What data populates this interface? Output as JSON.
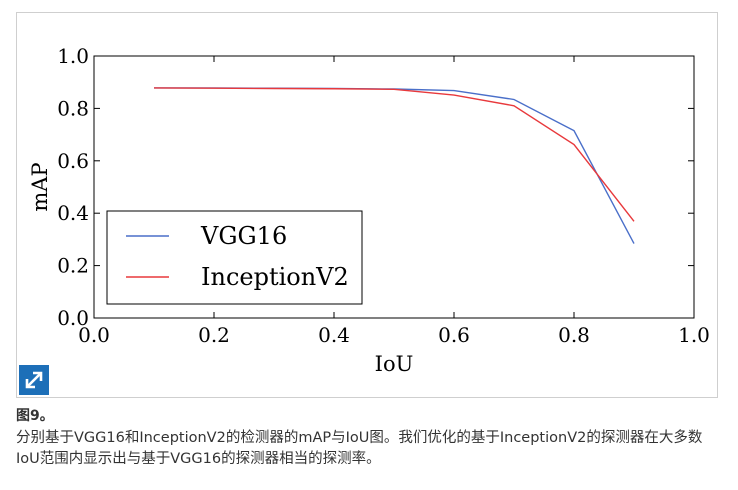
{
  "figure": {
    "label": "图9。",
    "caption": "分别基于VGG16和InceptionV2的检测器的mAP与IoU图。我们优化的基于InceptionV2的探测器在大多数IoU范围内显示出与基于VGG16的探测器相当的探测率。"
  },
  "icons": {
    "expand": "expand-arrows-icon"
  },
  "colors": {
    "accent": "#1d6fb8",
    "vgg16": "#4a6fc9",
    "inception": "#e8393c"
  },
  "chart_data": {
    "type": "line",
    "xlabel": "IoU",
    "ylabel": "mAP",
    "xlim": [
      0.0,
      1.0
    ],
    "ylim": [
      0.0,
      1.0
    ],
    "xticks": [
      "0.0",
      "0.2",
      "0.4",
      "0.6",
      "0.8",
      "1.0"
    ],
    "yticks": [
      "0.0",
      "0.2",
      "0.4",
      "0.6",
      "0.8",
      "1.0"
    ],
    "grid": false,
    "legend_position": "lower-left",
    "x": [
      0.1,
      0.2,
      0.3,
      0.4,
      0.5,
      0.6,
      0.7,
      0.8,
      0.9
    ],
    "series": [
      {
        "name": "VGG16",
        "color": "#4a6fc9",
        "values": [
          0.878,
          0.878,
          0.877,
          0.876,
          0.874,
          0.868,
          0.834,
          0.715,
          0.284
        ]
      },
      {
        "name": "InceptionV2",
        "color": "#e8393c",
        "values": [
          0.878,
          0.877,
          0.876,
          0.875,
          0.873,
          0.851,
          0.81,
          0.662,
          0.369
        ]
      }
    ]
  }
}
